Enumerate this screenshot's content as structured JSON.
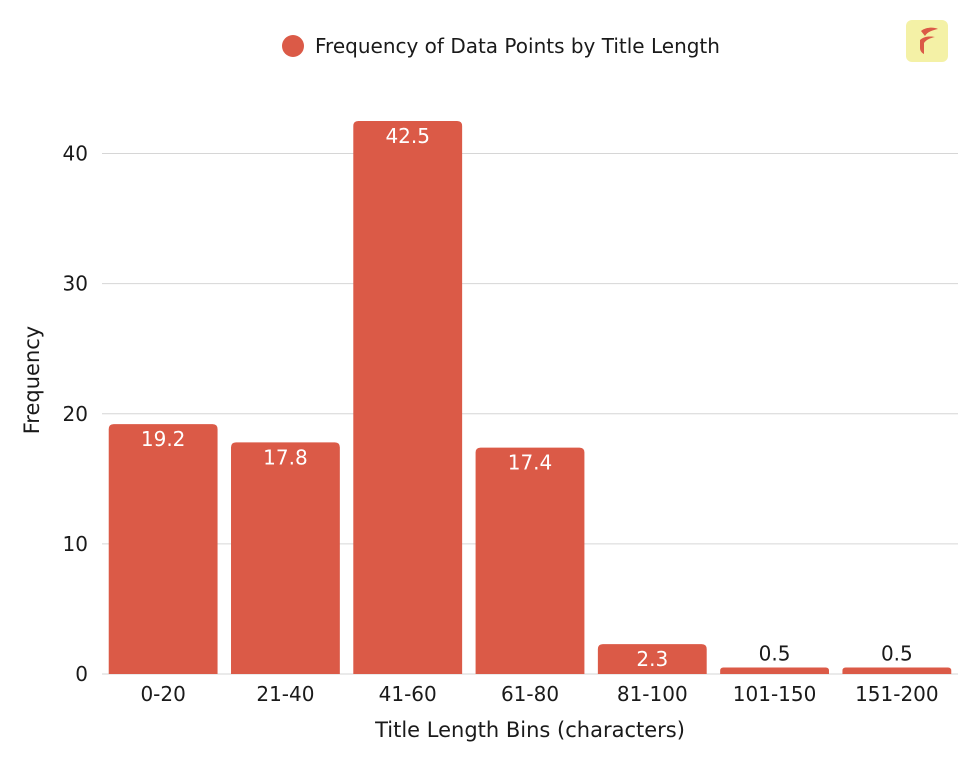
{
  "chart_data": {
    "type": "bar",
    "categories": [
      "0-20",
      "21-40",
      "41-60",
      "61-80",
      "81-100",
      "101-150",
      "151-200"
    ],
    "series": [
      {
        "name": "Frequency of Data Points by Title Length",
        "values": [
          19.2,
          17.8,
          42.5,
          17.4,
          2.3,
          0.5,
          0.5
        ]
      }
    ],
    "data_labels": [
      "19.2",
      "17.8",
      "42.5",
      "17.4",
      "2.3",
      "0.5",
      "0.5"
    ],
    "xlabel": "Title Length Bins (characters)",
    "ylabel": "Frequency",
    "ylim": [
      0,
      42.5
    ],
    "yticks": [
      0,
      10,
      20,
      30,
      40
    ],
    "grid": true,
    "legend_position": "top-center",
    "colors": {
      "bar": "#db5a47",
      "label_inside": "#ffffff",
      "label_outside": "#1a1a1a",
      "logo_bg": "#f4f1a6"
    }
  },
  "logo": {
    "icon": "brand-logo-icon"
  }
}
